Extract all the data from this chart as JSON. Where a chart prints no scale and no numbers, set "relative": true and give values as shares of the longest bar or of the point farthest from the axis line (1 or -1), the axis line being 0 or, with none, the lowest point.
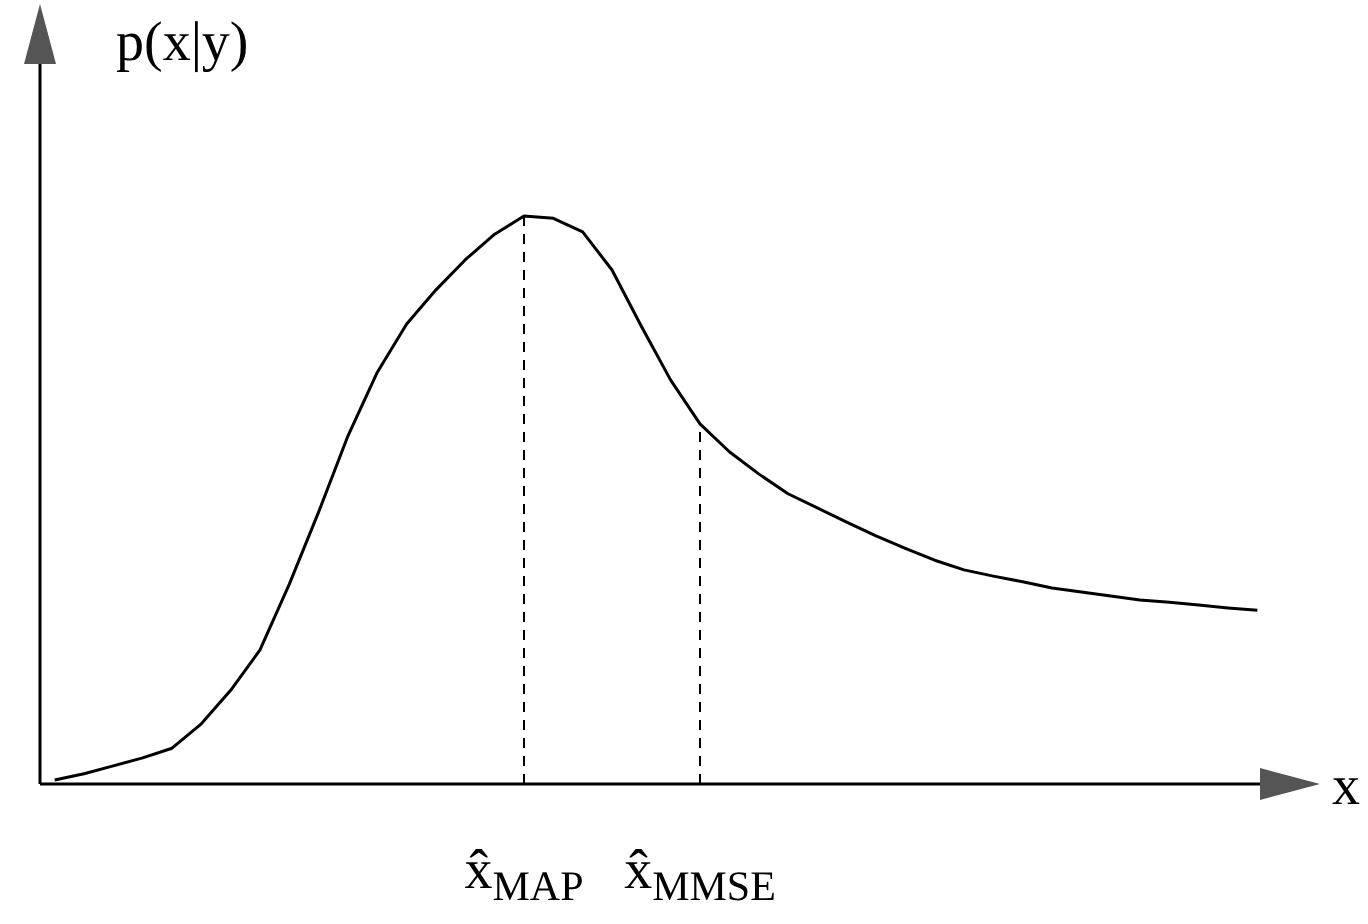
{
  "chart_data": {
    "type": "line",
    "relative": true,
    "ylabel": "p(x|y)",
    "xlabel": "x",
    "categories": [
      null,
      null,
      null,
      null,
      null,
      null,
      null,
      null,
      null,
      null,
      null,
      null,
      null,
      null,
      null,
      null,
      "x̂$_{MAP}$",
      null,
      null,
      null,
      null,
      null,
      "x̂$_{MMSE}$",
      null,
      null,
      null,
      null,
      null,
      null,
      null,
      null,
      null,
      null,
      null,
      null,
      null,
      null,
      null,
      null,
      null,
      null,
      null
    ],
    "series": [
      {
        "color": "#000000",
        "values": [
          0.007,
          0.018,
          0.032,
          0.046,
          0.063,
          0.106,
          0.165,
          0.236,
          0.352,
          0.479,
          0.613,
          0.725,
          0.81,
          0.87,
          0.923,
          0.968,
          1,
          0.996,
          0.972,
          0.905,
          0.806,
          0.711,
          0.634,
          0.585,
          0.546,
          0.511,
          0.486,
          0.461,
          0.437,
          0.415,
          0.394,
          0.377,
          0.366,
          0.356,
          0.345,
          0.338,
          0.331,
          0.324,
          0.32,
          0.315,
          0.31,
          0.306
        ]
      }
    ],
    "ref_lines": [
      {
        "axis": "x",
        "value": "x̂$_{MAP}$",
        "line_style": "dashed"
      },
      {
        "axis": "x",
        "value": "x̂$_{MMSE}$",
        "line_style": "dashed"
      }
    ],
    "line_style": "solid",
    "marker": "none"
  }
}
